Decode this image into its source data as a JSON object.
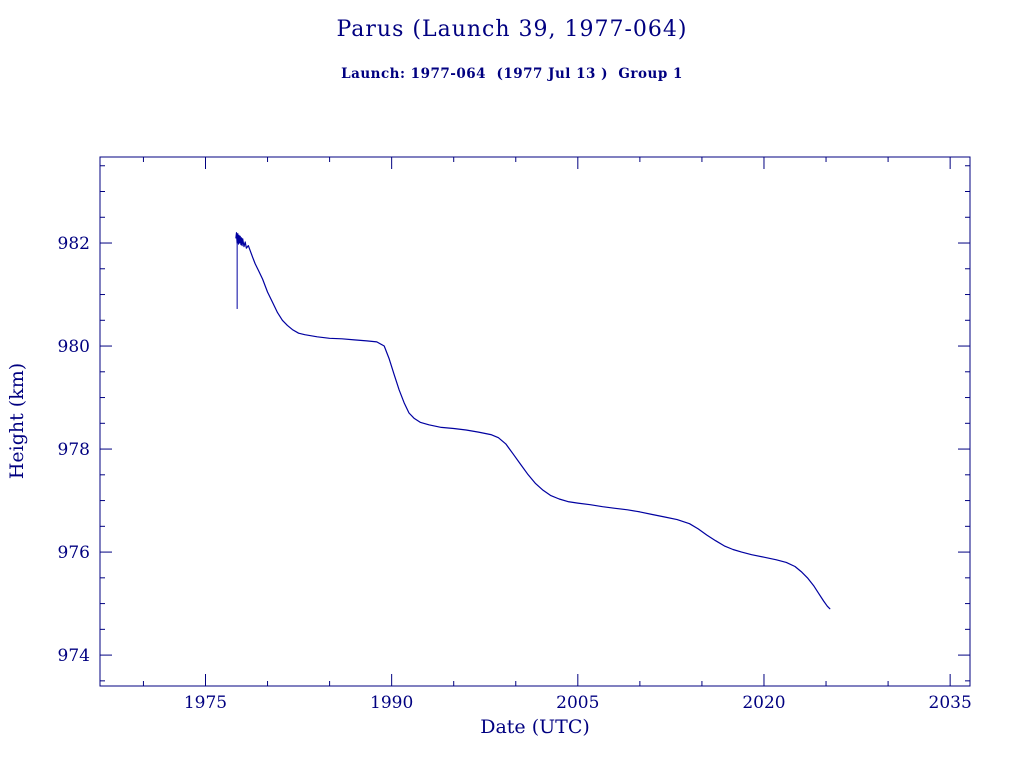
{
  "page": {
    "background": "#ffffff",
    "accent": "#000080"
  },
  "header": {
    "title": "Parus (Launch 39, 1977-064)",
    "subtitle": "Launch: 1977-064  (1977 Jul 13 )  Group 1"
  },
  "chart_data": {
    "type": "line",
    "title": "Parus (Launch 39, 1977-064)",
    "subtitle": "Launch: 1977-064  (1977 Jul 13 )  Group 1",
    "xlabel": "Date (UTC)",
    "ylabel": "Height (km)",
    "xlim": [
      1966.5,
      2036.6
    ],
    "ylim": [
      973.4,
      983.67
    ],
    "x_major_ticks": [
      1975,
      1990,
      2005,
      2020,
      2035
    ],
    "x_minor_step": 5,
    "y_major_ticks": [
      974,
      976,
      978,
      980,
      982
    ],
    "y_minor_step": 0.5,
    "grid": false,
    "legend": "none",
    "axis_color": "#000080",
    "text_color": "#000080",
    "line_color": "#0000a0",
    "initial_spike": {
      "x": 1977.55,
      "y_top": 982.12,
      "y_bottom": 980.72
    },
    "series": [
      {
        "name": "height",
        "x": [
          1977.45,
          1977.5,
          1977.55,
          1977.6,
          1977.65,
          1977.7,
          1977.75,
          1977.8,
          1977.85,
          1977.9,
          1977.95,
          1978.0,
          1978.1,
          1978.2,
          1978.3,
          1978.45,
          1978.6,
          1978.8,
          1979.0,
          1979.3,
          1979.6,
          1980.0,
          1980.4,
          1980.8,
          1981.2,
          1981.6,
          1982.0,
          1982.5,
          1983.0,
          1984.0,
          1985.0,
          1986.0,
          1987.0,
          1988.0,
          1988.8,
          1989.4,
          1989.8,
          1990.2,
          1990.6,
          1991.0,
          1991.4,
          1991.8,
          1992.3,
          1993.0,
          1994.0,
          1995.0,
          1996.0,
          1997.0,
          1998.0,
          1998.6,
          1999.2,
          1999.8,
          2000.4,
          2001.0,
          2001.6,
          2002.2,
          2002.8,
          2003.5,
          2004.2,
          2005.0,
          2006.0,
          2007.0,
          2008.0,
          2009.0,
          2010.0,
          2011.0,
          2012.0,
          2013.0,
          2014.0,
          2014.7,
          2015.4,
          2016.1,
          2016.8,
          2017.5,
          2018.2,
          2019.0,
          2020.0,
          2021.0,
          2021.8,
          2022.5,
          2023.0,
          2023.5,
          2024.0,
          2024.4,
          2024.8,
          2025.1,
          2025.3
        ],
        "y": [
          982.1,
          982.2,
          982.0,
          982.18,
          981.98,
          982.15,
          982.0,
          982.13,
          981.97,
          982.1,
          981.95,
          982.08,
          981.93,
          982.02,
          981.9,
          981.95,
          981.85,
          981.72,
          981.6,
          981.45,
          981.3,
          981.05,
          980.85,
          980.65,
          980.5,
          980.4,
          980.32,
          980.25,
          980.22,
          980.18,
          980.15,
          980.14,
          980.12,
          980.1,
          980.08,
          980.0,
          979.75,
          979.45,
          979.15,
          978.9,
          978.7,
          978.6,
          978.52,
          978.47,
          978.42,
          978.4,
          978.37,
          978.33,
          978.28,
          978.22,
          978.1,
          977.9,
          977.7,
          977.5,
          977.33,
          977.2,
          977.1,
          977.03,
          976.98,
          976.95,
          976.92,
          976.88,
          976.85,
          976.82,
          976.78,
          976.73,
          976.68,
          976.63,
          976.55,
          976.45,
          976.33,
          976.22,
          976.12,
          976.05,
          976.0,
          975.95,
          975.9,
          975.85,
          975.8,
          975.72,
          975.62,
          975.5,
          975.35,
          975.2,
          975.05,
          974.95,
          974.9
        ]
      }
    ]
  }
}
